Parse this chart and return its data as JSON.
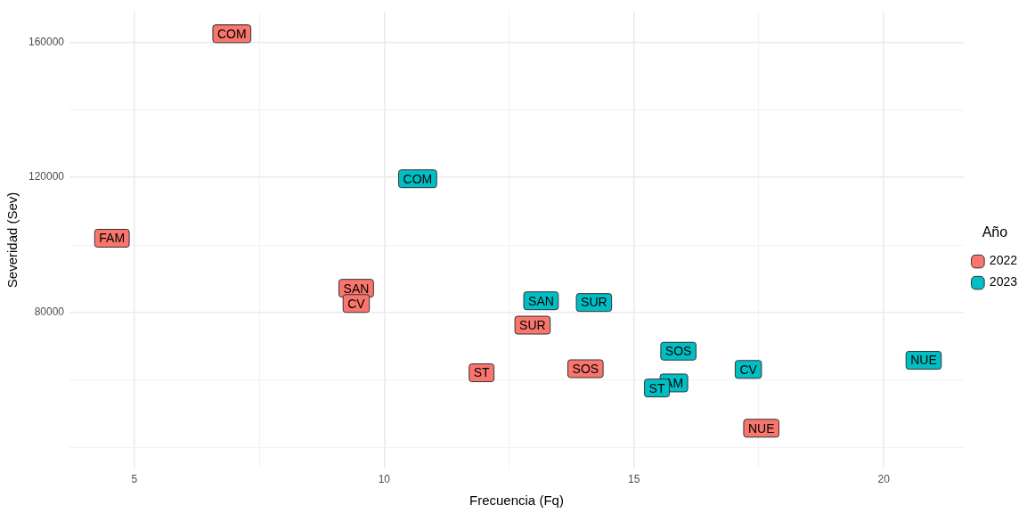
{
  "chart_data": {
    "type": "scatter",
    "xlabel": "Frecuencia (Fq)",
    "ylabel": "Severidad (Sev)",
    "legend_title": "Año",
    "legend": "right",
    "grid": true,
    "marker": "square",
    "xlim": [
      3.7,
      21.6
    ],
    "xticks": [
      5,
      {
        "value": 7.5,
        "label": null
      },
      10,
      {
        "value": 12.5,
        "label": null
      },
      15,
      {
        "value": 17.5,
        "label": null
      },
      20
    ],
    "ylim": [
      34000,
      169000
    ],
    "yticks": [
      {
        "value": 40000,
        "label": null
      },
      {
        "value": 60000,
        "label": null
      },
      80000,
      {
        "value": 100000,
        "label": null
      },
      120000,
      {
        "value": 140000,
        "label": null
      },
      160000
    ],
    "series": [
      {
        "name": "2022",
        "color": "#f8766d",
        "x": [
          6.95,
          4.55,
          9.44,
          9.44,
          12.97,
          11.95,
          14.03,
          17.55
        ],
        "values": [
          162500,
          102000,
          87200,
          82700,
          76300,
          62200,
          63400,
          45800
        ],
        "value_labels": [
          "COM",
          "FAM",
          "SAN",
          "CV",
          "SUR",
          "ST",
          "SOS",
          "NUE"
        ]
      },
      {
        "name": "2023",
        "color": "#00bfc4",
        "x": [
          10.67,
          13.14,
          14.2,
          15.89,
          15.8,
          15.46,
          17.29,
          20.8
        ],
        "values": [
          119600,
          83500,
          83000,
          68600,
          59200,
          57700,
          63200,
          65900
        ],
        "value_labels": [
          "COM",
          "SAN",
          "SUR",
          "SOS",
          "AM",
          "ST",
          "CV",
          "NUE"
        ]
      }
    ]
  }
}
